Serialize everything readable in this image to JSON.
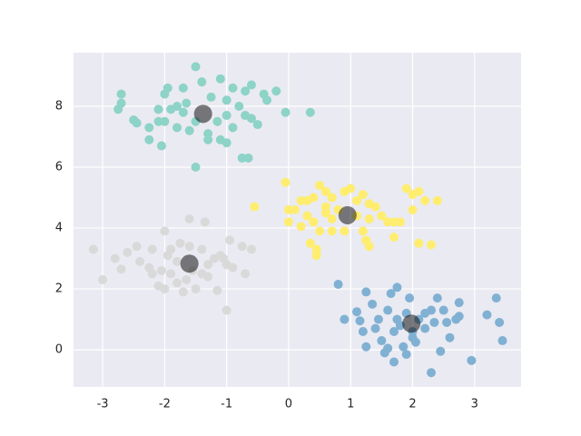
{
  "chart_data": {
    "type": "scatter",
    "xlim": [
      -3.47,
      3.75
    ],
    "ylim": [
      -1.22,
      9.76
    ],
    "xticks": [
      -3,
      -2,
      -1,
      0,
      1,
      2,
      3
    ],
    "yticks": [
      0,
      2,
      4,
      6,
      8
    ],
    "grid": true,
    "series": [
      {
        "color": "#8dd3c7",
        "x": [
          -1.5,
          -2.7,
          -2.7,
          -2.75,
          -2.5,
          -2.45,
          -2.1,
          -2.0,
          -2.0,
          -1.95,
          -1.7,
          -1.4,
          -1.1,
          -0.9,
          -0.7,
          -0.6,
          -0.4,
          -0.2,
          -0.35,
          -2.25,
          -2.25,
          -2.05,
          -1.8,
          -1.6,
          -1.3,
          -1.1,
          -1.0,
          -0.75,
          -0.65,
          -1.5,
          -1.7,
          -1.9,
          -1.25,
          -1.0,
          -0.8,
          -1.0,
          -0.7,
          -0.5,
          -0.6,
          -0.9,
          -1.15,
          -1.5,
          -1.65,
          -2.1,
          -0.05,
          0.35,
          -1.8,
          -1.3
        ],
        "y": [
          9.3,
          8.4,
          8.1,
          7.9,
          7.55,
          7.45,
          7.5,
          7.5,
          8.4,
          8.6,
          8.6,
          8.8,
          8.9,
          8.6,
          8.5,
          8.7,
          8.4,
          8.5,
          8.2,
          7.3,
          6.9,
          6.7,
          7.3,
          7.2,
          6.9,
          6.9,
          6.8,
          6.3,
          6.3,
          6.0,
          7.8,
          7.9,
          8.3,
          8.2,
          8.0,
          7.7,
          7.7,
          7.4,
          7.6,
          7.3,
          7.5,
          7.5,
          8.1,
          7.9,
          7.8,
          7.8,
          8.0,
          7.1
        ]
      },
      {
        "color": "#ffed6f",
        "x": [
          -0.05,
          0.0,
          0.1,
          0.2,
          0.3,
          0.4,
          0.5,
          0.6,
          0.7,
          0.9,
          1.0,
          1.2,
          1.3,
          0.3,
          0.4,
          0.6,
          0.7,
          0.8,
          1.1,
          1.3,
          1.5,
          1.6,
          1.7,
          1.8,
          1.9,
          2.0,
          2.1,
          2.0,
          2.2,
          2.4,
          0.0,
          0.2,
          0.5,
          0.7,
          0.9,
          1.2,
          1.25,
          1.3,
          1.7,
          2.1,
          2.3,
          0.35,
          0.45,
          0.45,
          -0.55,
          1.4,
          1.1,
          0.6
        ],
        "y": [
          5.5,
          4.6,
          4.6,
          4.9,
          4.9,
          5.0,
          5.4,
          5.2,
          5.0,
          5.2,
          5.3,
          5.1,
          4.8,
          4.4,
          4.2,
          4.5,
          4.3,
          4.6,
          4.4,
          4.3,
          4.4,
          4.2,
          4.2,
          4.2,
          5.3,
          5.1,
          5.2,
          4.6,
          4.9,
          4.9,
          4.2,
          4.05,
          3.9,
          3.9,
          3.9,
          3.9,
          3.6,
          3.4,
          3.7,
          3.5,
          3.45,
          3.5,
          3.3,
          3.1,
          4.7,
          4.7,
          4.9,
          4.7
        ]
      },
      {
        "color": "#d9d9d9",
        "x": [
          -3.15,
          -3.0,
          -2.8,
          -2.7,
          -2.6,
          -2.45,
          -2.25,
          -2.2,
          -2.2,
          -2.1,
          -2.0,
          -2.0,
          -1.9,
          -1.9,
          -1.8,
          -1.7,
          -1.6,
          -1.6,
          -1.5,
          -1.4,
          -1.35,
          -1.3,
          -1.2,
          -1.15,
          -1.1,
          -1.0,
          -0.95,
          -1.0,
          -0.9,
          -0.75,
          -0.7,
          -0.6,
          -1.3,
          -1.55,
          -1.8,
          -2.05,
          -1.75,
          -1.05,
          -1.4,
          -1.95,
          -2.4,
          -1.65
        ],
        "y": [
          3.3,
          2.3,
          3.0,
          2.65,
          3.2,
          3.4,
          2.7,
          3.3,
          2.5,
          2.1,
          3.9,
          2.0,
          2.5,
          3.3,
          2.2,
          1.9,
          4.3,
          3.4,
          2.0,
          2.5,
          4.2,
          2.4,
          3.0,
          1.95,
          3.1,
          2.8,
          3.6,
          1.3,
          2.7,
          3.4,
          2.5,
          3.3,
          2.8,
          2.6,
          2.9,
          2.6,
          3.5,
          3.0,
          3.3,
          3.1,
          2.9,
          2.3
        ]
      },
      {
        "color": "#80b1d3",
        "x": [
          0.8,
          0.9,
          1.1,
          1.15,
          1.2,
          1.25,
          1.25,
          1.35,
          1.4,
          1.45,
          1.5,
          1.55,
          1.6,
          1.65,
          1.7,
          1.7,
          1.75,
          1.8,
          1.85,
          1.9,
          1.9,
          2.0,
          2.05,
          2.1,
          2.2,
          2.2,
          2.3,
          2.35,
          2.4,
          2.45,
          2.5,
          2.55,
          2.6,
          2.7,
          2.75,
          2.75,
          2.95,
          3.2,
          3.35,
          3.4,
          3.45,
          1.95,
          1.6,
          2.3,
          2.0,
          1.75
        ],
        "y": [
          2.15,
          1.0,
          1.25,
          0.95,
          0.6,
          1.9,
          0.1,
          1.5,
          0.7,
          1.0,
          0.3,
          -0.1,
          0.05,
          1.85,
          -0.4,
          0.6,
          2.05,
          0.8,
          0.1,
          1.2,
          -0.15,
          0.6,
          0.25,
          1.0,
          1.2,
          0.7,
          -0.75,
          0.9,
          1.7,
          -0.05,
          1.3,
          0.9,
          0.4,
          1.0,
          1.55,
          1.1,
          -0.35,
          1.15,
          1.7,
          0.9,
          0.3,
          1.7,
          1.3,
          1.3,
          0.4,
          1.0
        ]
      }
    ],
    "centers": {
      "color": "#000000",
      "x": [
        -1.38,
        0.95,
        -1.6,
        1.98
      ],
      "y": [
        7.75,
        4.42,
        2.83,
        0.86
      ]
    }
  }
}
